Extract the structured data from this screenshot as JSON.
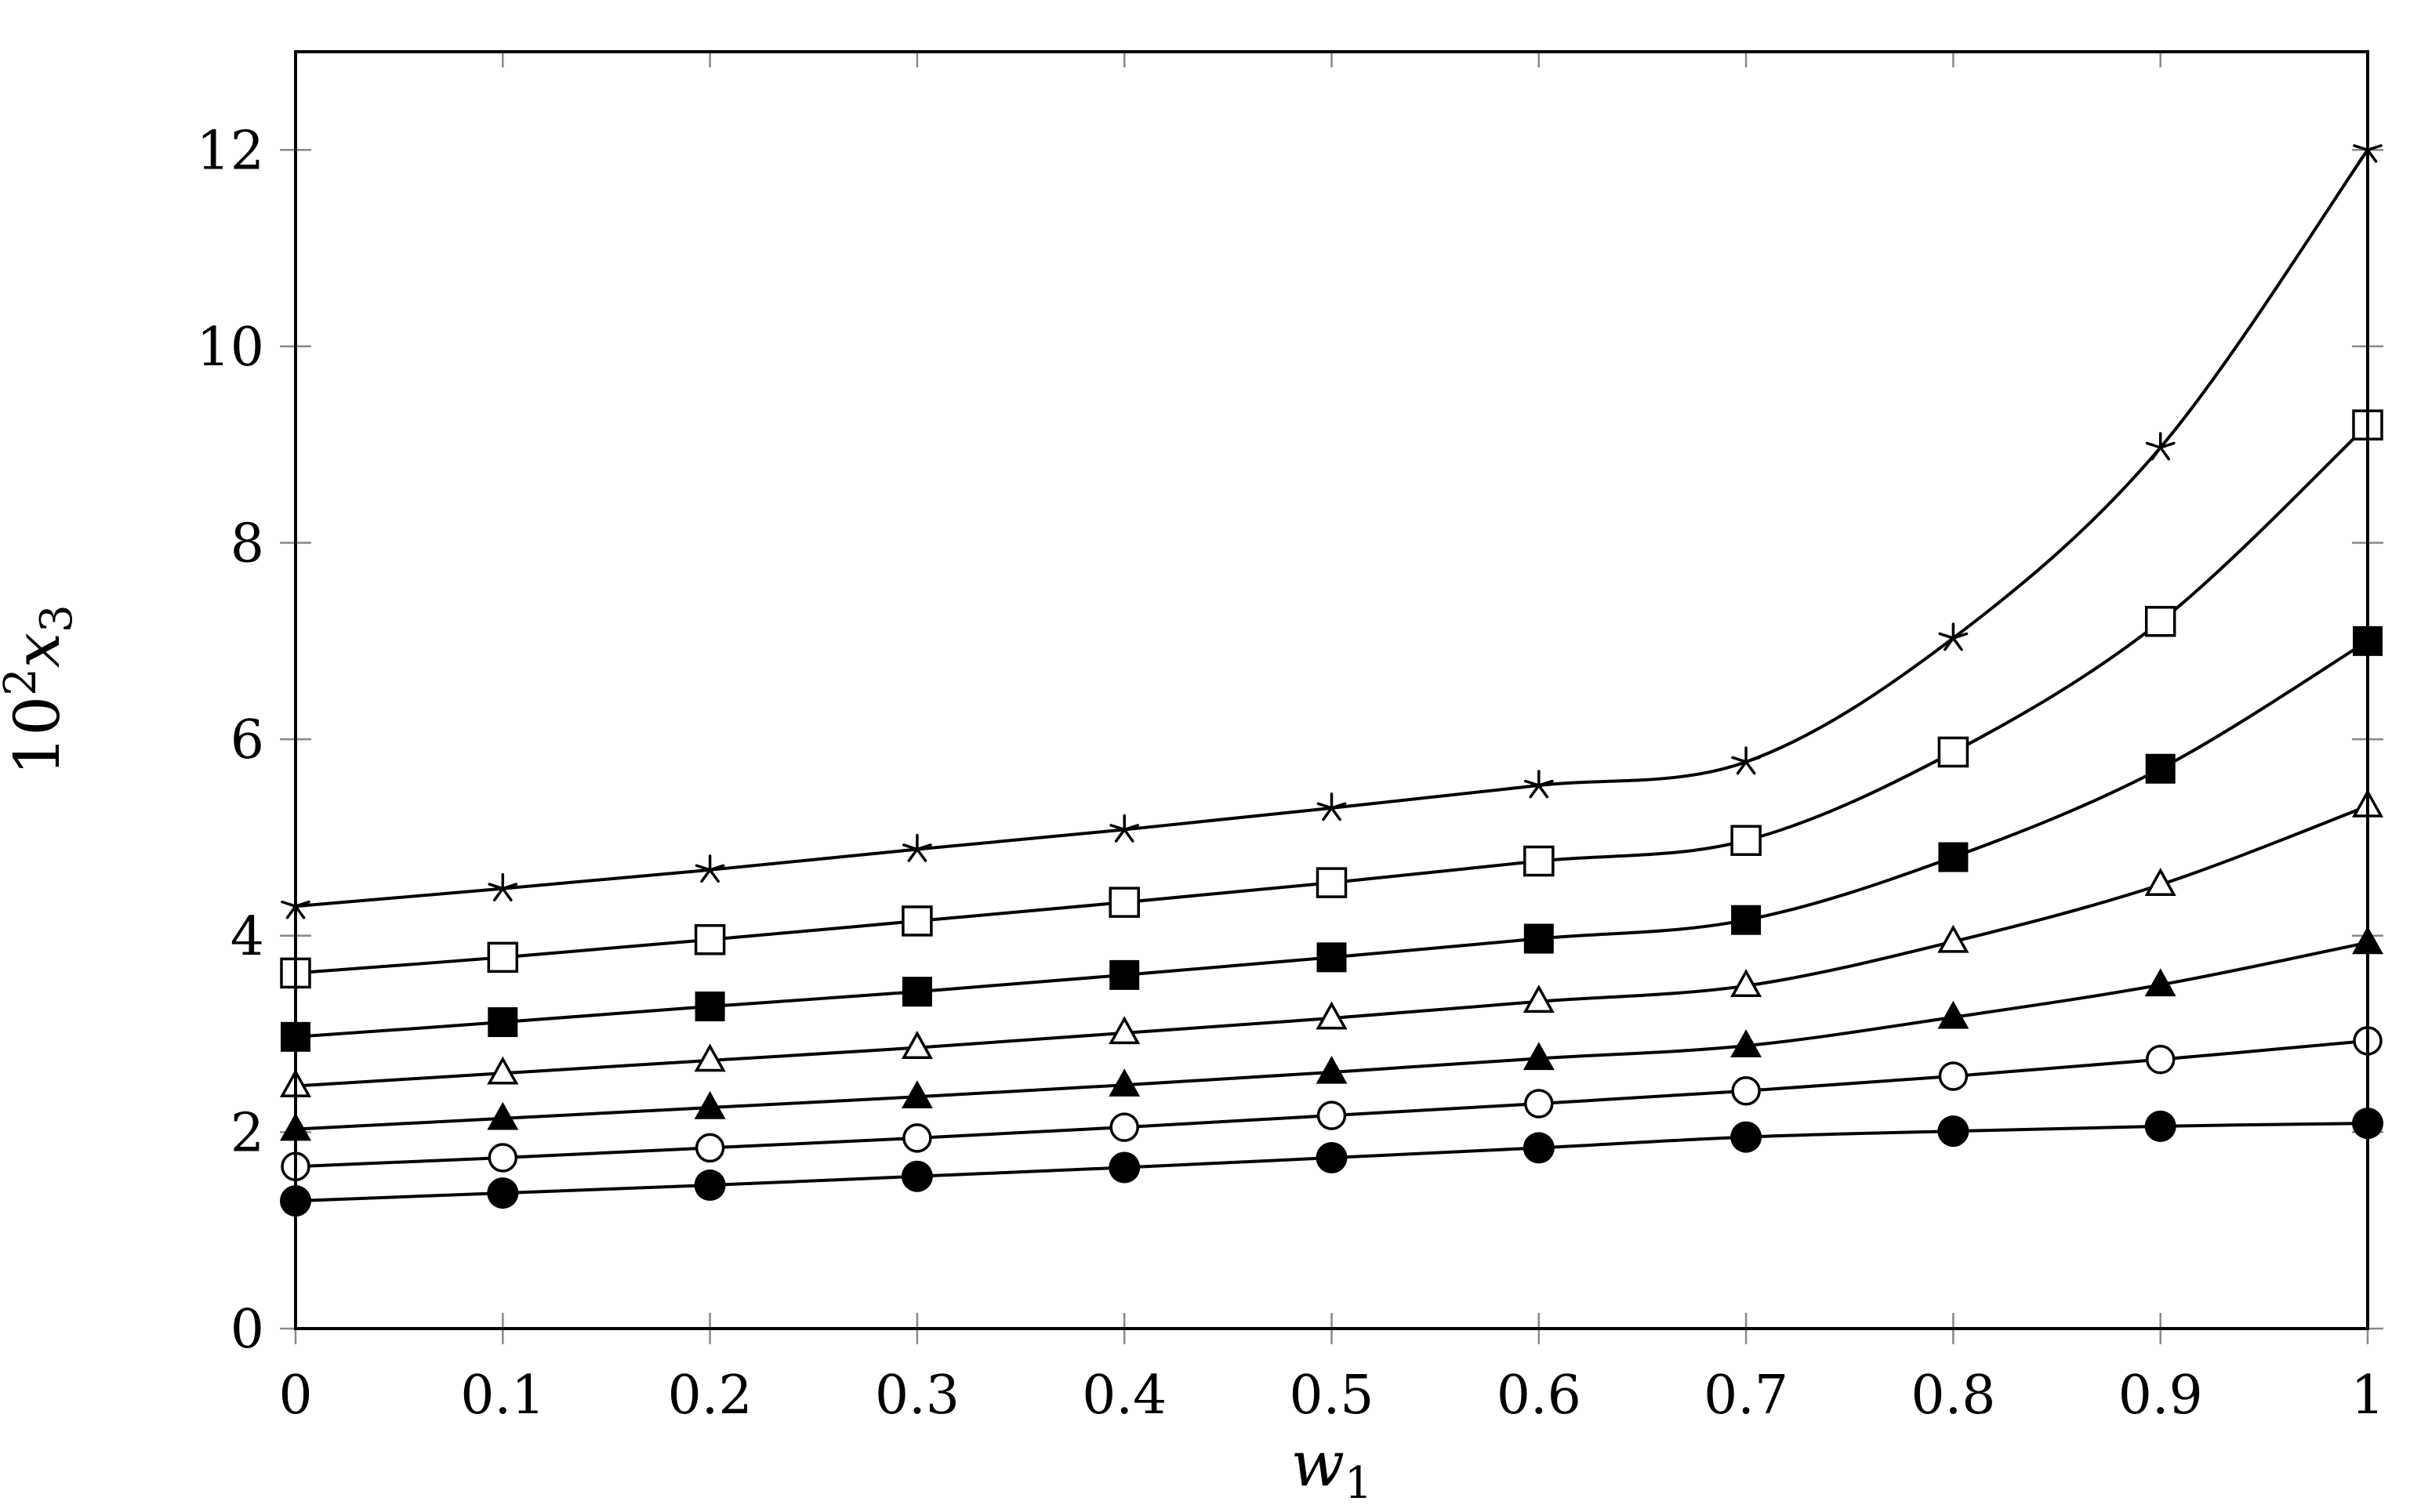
{
  "chart_data": {
    "type": "line",
    "title": "",
    "xlabel": {
      "base": "w",
      "sub": "1"
    },
    "ylabel": {
      "prefix": "10",
      "sup": "2",
      "base": "x",
      "sub": "3"
    },
    "xlim": [
      0,
      1
    ],
    "ylim": [
      0,
      13
    ],
    "x": [
      0,
      0.1,
      0.2,
      0.3,
      0.4,
      0.5,
      0.6,
      0.7,
      0.8,
      0.9,
      1
    ],
    "x_tick_labels": [
      "0",
      "0.1",
      "0.2",
      "0.3",
      "0.4",
      "0.5",
      "0.6",
      "0.7",
      "0.8",
      "0.9",
      "1"
    ],
    "y_ticks": [
      0,
      2,
      4,
      6,
      8,
      10,
      12
    ],
    "y_tick_labels": [
      "0",
      "2",
      "4",
      "6",
      "8",
      "10",
      "12"
    ],
    "grid": false,
    "legend": false,
    "series": [
      {
        "marker": "star",
        "color": "#000000",
        "values": [
          4.3,
          4.48,
          4.67,
          4.88,
          5.08,
          5.3,
          5.53,
          5.77,
          7.03,
          8.97,
          12.0
        ]
      },
      {
        "marker": "square-open",
        "color": "#000000",
        "values": [
          3.62,
          3.78,
          3.96,
          4.15,
          4.34,
          4.54,
          4.76,
          4.97,
          5.87,
          7.2,
          9.2
        ]
      },
      {
        "marker": "square-filled",
        "color": "#000000",
        "values": [
          2.97,
          3.12,
          3.28,
          3.43,
          3.6,
          3.78,
          3.97,
          4.16,
          4.8,
          5.7,
          7.0
        ]
      },
      {
        "marker": "triangle-open",
        "color": "#000000",
        "values": [
          2.47,
          2.6,
          2.73,
          2.86,
          3.01,
          3.16,
          3.33,
          3.49,
          3.94,
          4.52,
          5.32
        ]
      },
      {
        "marker": "triangle-filled",
        "color": "#000000",
        "values": [
          2.03,
          2.14,
          2.25,
          2.36,
          2.48,
          2.61,
          2.75,
          2.88,
          3.17,
          3.5,
          3.93
        ]
      },
      {
        "marker": "circle-open",
        "color": "#000000",
        "values": [
          1.65,
          1.74,
          1.84,
          1.94,
          2.05,
          2.17,
          2.29,
          2.42,
          2.57,
          2.74,
          2.93
        ]
      },
      {
        "marker": "circle-filled",
        "color": "#000000",
        "values": [
          1.3,
          1.38,
          1.46,
          1.55,
          1.64,
          1.74,
          1.84,
          1.95,
          2.01,
          2.06,
          2.09
        ]
      }
    ]
  }
}
